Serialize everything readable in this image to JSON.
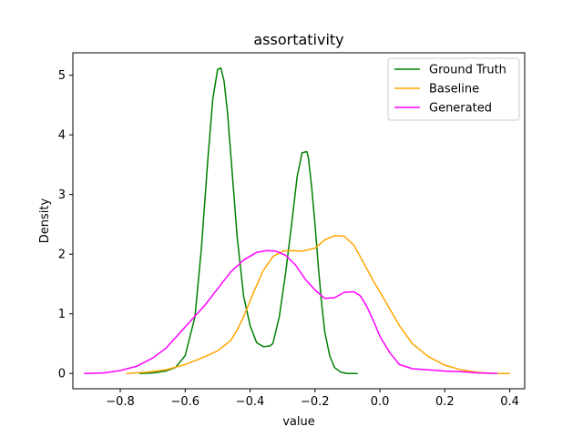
{
  "chart_data": {
    "type": "line",
    "title": "assortativity",
    "xlabel": "value",
    "ylabel": "Density",
    "xlim": [
      -0.946,
      0.446
    ],
    "ylim": [
      -0.256,
      5.376
    ],
    "xticks": [
      -0.8,
      -0.6,
      -0.4,
      -0.2,
      0.0,
      0.2,
      0.4
    ],
    "xtick_labels": [
      "−0.8",
      "−0.6",
      "−0.4",
      "−0.2",
      "0.0",
      "0.2",
      "0.4"
    ],
    "yticks": [
      0,
      1,
      2,
      3,
      4,
      5
    ],
    "ytick_labels": [
      "0",
      "1",
      "2",
      "3",
      "4",
      "5"
    ],
    "grid": false,
    "legend_position": "top-right",
    "series": [
      {
        "name": "Ground Truth",
        "color": "#008000",
        "x": [
          -0.74,
          -0.7,
          -0.66,
          -0.63,
          -0.6,
          -0.57,
          -0.55,
          -0.53,
          -0.515,
          -0.5,
          -0.49,
          -0.48,
          -0.47,
          -0.46,
          -0.44,
          -0.42,
          -0.4,
          -0.38,
          -0.36,
          -0.34,
          -0.33,
          -0.31,
          -0.29,
          -0.27,
          -0.255,
          -0.24,
          -0.225,
          -0.22,
          -0.21,
          -0.2,
          -0.19,
          -0.18,
          -0.17,
          -0.155,
          -0.14,
          -0.12,
          -0.1,
          -0.07
        ],
        "values": [
          0.0,
          0.01,
          0.04,
          0.1,
          0.3,
          0.95,
          2.1,
          3.6,
          4.6,
          5.1,
          5.12,
          4.9,
          4.4,
          3.7,
          2.3,
          1.3,
          0.8,
          0.52,
          0.45,
          0.46,
          0.5,
          0.95,
          1.7,
          2.6,
          3.3,
          3.7,
          3.72,
          3.6,
          3.1,
          2.5,
          1.8,
          1.2,
          0.7,
          0.3,
          0.1,
          0.02,
          0.0,
          0.0
        ]
      },
      {
        "name": "Baseline",
        "color": "#FFA500",
        "x": [
          -0.78,
          -0.72,
          -0.66,
          -0.6,
          -0.54,
          -0.5,
          -0.46,
          -0.44,
          -0.42,
          -0.39,
          -0.36,
          -0.33,
          -0.3,
          -0.27,
          -0.24,
          -0.2,
          -0.17,
          -0.14,
          -0.11,
          -0.08,
          -0.05,
          -0.02,
          0.02,
          0.06,
          0.1,
          0.15,
          0.2,
          0.25,
          0.3,
          0.35,
          0.4
        ],
        "values": [
          0.0,
          0.02,
          0.06,
          0.15,
          0.28,
          0.38,
          0.55,
          0.73,
          0.95,
          1.35,
          1.72,
          1.96,
          2.05,
          2.06,
          2.05,
          2.1,
          2.24,
          2.31,
          2.3,
          2.15,
          1.85,
          1.55,
          1.18,
          0.8,
          0.5,
          0.28,
          0.14,
          0.06,
          0.02,
          0.0,
          0.0
        ]
      },
      {
        "name": "Generated",
        "color": "#FF00FF",
        "x": [
          -0.91,
          -0.85,
          -0.8,
          -0.75,
          -0.7,
          -0.66,
          -0.62,
          -0.58,
          -0.54,
          -0.5,
          -0.46,
          -0.42,
          -0.38,
          -0.35,
          -0.32,
          -0.29,
          -0.26,
          -0.23,
          -0.2,
          -0.17,
          -0.14,
          -0.11,
          -0.08,
          -0.06,
          -0.04,
          -0.02,
          0.0,
          0.03,
          0.06,
          0.1,
          0.15,
          0.2,
          0.25,
          0.3,
          0.36
        ],
        "values": [
          0.0,
          0.01,
          0.05,
          0.12,
          0.26,
          0.42,
          0.66,
          0.9,
          1.14,
          1.42,
          1.7,
          1.9,
          2.03,
          2.06,
          2.05,
          1.98,
          1.82,
          1.58,
          1.4,
          1.26,
          1.27,
          1.36,
          1.37,
          1.3,
          1.12,
          0.88,
          0.62,
          0.35,
          0.15,
          0.08,
          0.06,
          0.04,
          0.03,
          0.01,
          0.0
        ]
      }
    ]
  }
}
